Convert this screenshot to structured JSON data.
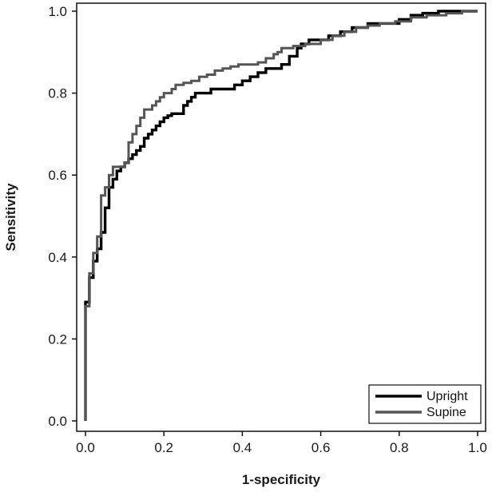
{
  "chart_data": {
    "type": "line",
    "title": "",
    "xlabel": "1-specificity",
    "ylabel": "Sensitivity",
    "xlim": [
      0,
      1
    ],
    "ylim": [
      0,
      1
    ],
    "xticks": [
      "0.0",
      "0.2",
      "0.4",
      "0.6",
      "0.8",
      "1.0"
    ],
    "yticks": [
      "0.0",
      "0.2",
      "0.4",
      "0.6",
      "0.8",
      "1.0"
    ],
    "grid": false,
    "legend_position": "bottom-right",
    "series": [
      {
        "name": "Upright",
        "color": "#000000",
        "points": [
          [
            0.0,
            0.0
          ],
          [
            0.0,
            0.29
          ],
          [
            0.01,
            0.3
          ],
          [
            0.01,
            0.35
          ],
          [
            0.02,
            0.37
          ],
          [
            0.02,
            0.39
          ],
          [
            0.03,
            0.4
          ],
          [
            0.03,
            0.42
          ],
          [
            0.04,
            0.44
          ],
          [
            0.04,
            0.46
          ],
          [
            0.05,
            0.5
          ],
          [
            0.05,
            0.52
          ],
          [
            0.06,
            0.55
          ],
          [
            0.06,
            0.57
          ],
          [
            0.07,
            0.59
          ],
          [
            0.08,
            0.61
          ],
          [
            0.09,
            0.62
          ],
          [
            0.1,
            0.63
          ],
          [
            0.11,
            0.64
          ],
          [
            0.12,
            0.65
          ],
          [
            0.13,
            0.66
          ],
          [
            0.14,
            0.67
          ],
          [
            0.15,
            0.69
          ],
          [
            0.16,
            0.7
          ],
          [
            0.17,
            0.71
          ],
          [
            0.18,
            0.72
          ],
          [
            0.19,
            0.73
          ],
          [
            0.2,
            0.74
          ],
          [
            0.21,
            0.745
          ],
          [
            0.22,
            0.75
          ],
          [
            0.24,
            0.75
          ],
          [
            0.25,
            0.77
          ],
          [
            0.26,
            0.78
          ],
          [
            0.27,
            0.79
          ],
          [
            0.28,
            0.8
          ],
          [
            0.31,
            0.8
          ],
          [
            0.32,
            0.81
          ],
          [
            0.36,
            0.81
          ],
          [
            0.38,
            0.82
          ],
          [
            0.4,
            0.83
          ],
          [
            0.42,
            0.84
          ],
          [
            0.44,
            0.85
          ],
          [
            0.46,
            0.86
          ],
          [
            0.48,
            0.86
          ],
          [
            0.5,
            0.87
          ],
          [
            0.52,
            0.89
          ],
          [
            0.54,
            0.91
          ],
          [
            0.55,
            0.92
          ],
          [
            0.57,
            0.93
          ],
          [
            0.59,
            0.93
          ],
          [
            0.62,
            0.94
          ],
          [
            0.65,
            0.95
          ],
          [
            0.68,
            0.96
          ],
          [
            0.72,
            0.97
          ],
          [
            0.76,
            0.97
          ],
          [
            0.8,
            0.98
          ],
          [
            0.83,
            0.99
          ],
          [
            0.86,
            0.995
          ],
          [
            0.9,
            1.0
          ],
          [
            1.0,
            1.0
          ]
        ]
      },
      {
        "name": "Supine",
        "color": "#555555",
        "points": [
          [
            0.0,
            0.0
          ],
          [
            0.0,
            0.28
          ],
          [
            0.01,
            0.32
          ],
          [
            0.01,
            0.36
          ],
          [
            0.02,
            0.38
          ],
          [
            0.02,
            0.41
          ],
          [
            0.03,
            0.43
          ],
          [
            0.03,
            0.45
          ],
          [
            0.04,
            0.5
          ],
          [
            0.04,
            0.55
          ],
          [
            0.05,
            0.57
          ],
          [
            0.06,
            0.6
          ],
          [
            0.07,
            0.62
          ],
          [
            0.09,
            0.62
          ],
          [
            0.1,
            0.63
          ],
          [
            0.11,
            0.64
          ],
          [
            0.11,
            0.68
          ],
          [
            0.12,
            0.7
          ],
          [
            0.13,
            0.72
          ],
          [
            0.14,
            0.74
          ],
          [
            0.15,
            0.76
          ],
          [
            0.17,
            0.77
          ],
          [
            0.18,
            0.78
          ],
          [
            0.19,
            0.79
          ],
          [
            0.2,
            0.8
          ],
          [
            0.22,
            0.81
          ],
          [
            0.23,
            0.82
          ],
          [
            0.25,
            0.825
          ],
          [
            0.27,
            0.83
          ],
          [
            0.29,
            0.84
          ],
          [
            0.31,
            0.845
          ],
          [
            0.33,
            0.855
          ],
          [
            0.35,
            0.86
          ],
          [
            0.37,
            0.865
          ],
          [
            0.39,
            0.87
          ],
          [
            0.42,
            0.87
          ],
          [
            0.44,
            0.875
          ],
          [
            0.46,
            0.885
          ],
          [
            0.48,
            0.895
          ],
          [
            0.49,
            0.9
          ],
          [
            0.5,
            0.91
          ],
          [
            0.53,
            0.915
          ],
          [
            0.56,
            0.92
          ],
          [
            0.6,
            0.93
          ],
          [
            0.63,
            0.94
          ],
          [
            0.66,
            0.95
          ],
          [
            0.69,
            0.96
          ],
          [
            0.72,
            0.965
          ],
          [
            0.75,
            0.97
          ],
          [
            0.79,
            0.975
          ],
          [
            0.83,
            0.985
          ],
          [
            0.87,
            0.99
          ],
          [
            0.92,
            0.995
          ],
          [
            0.96,
            1.0
          ],
          [
            1.0,
            1.0
          ]
        ]
      }
    ]
  }
}
